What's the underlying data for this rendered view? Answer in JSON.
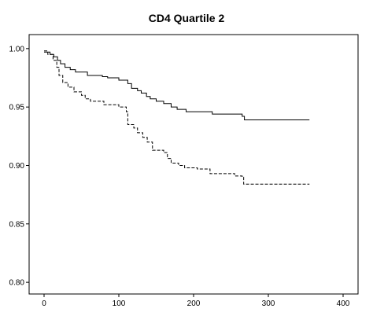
{
  "chart_data": {
    "type": "line",
    "title": "CD4 Quartile 2",
    "xlabel": "",
    "ylabel": "",
    "xlim": [
      -20,
      420
    ],
    "ylim": [
      0.79,
      1.012
    ],
    "x_ticks": [
      0,
      100,
      200,
      300,
      400
    ],
    "x_tick_labels": [
      "0",
      "100",
      "200",
      "300",
      "400"
    ],
    "y_ticks": [
      0.8,
      0.85,
      0.9,
      0.95,
      1.0
    ],
    "y_tick_labels": [
      "0.80",
      "0.85",
      "0.90",
      "0.95",
      "1.00"
    ],
    "grid": false,
    "step": true,
    "series": [
      {
        "line_style": "solid",
        "color": "#000000",
        "points": [
          [
            0,
            0.997
          ],
          [
            5,
            0.997
          ],
          [
            8,
            0.995
          ],
          [
            13,
            0.993
          ],
          [
            18,
            0.99
          ],
          [
            22,
            0.987
          ],
          [
            28,
            0.984
          ],
          [
            35,
            0.982
          ],
          [
            42,
            0.98
          ],
          [
            58,
            0.977
          ],
          [
            78,
            0.976
          ],
          [
            85,
            0.975
          ],
          [
            100,
            0.973
          ],
          [
            112,
            0.97
          ],
          [
            117,
            0.966
          ],
          [
            125,
            0.964
          ],
          [
            130,
            0.962
          ],
          [
            137,
            0.959
          ],
          [
            142,
            0.957
          ],
          [
            150,
            0.955
          ],
          [
            160,
            0.953
          ],
          [
            170,
            0.95
          ],
          [
            178,
            0.948
          ],
          [
            190,
            0.946
          ],
          [
            225,
            0.944
          ],
          [
            265,
            0.942
          ],
          [
            268,
            0.939
          ],
          [
            355,
            0.939
          ]
        ]
      },
      {
        "line_style": "dashed",
        "color": "#000000",
        "points": [
          [
            0,
            0.998
          ],
          [
            2,
            0.998
          ],
          [
            5,
            0.995
          ],
          [
            12,
            0.99
          ],
          [
            17,
            0.984
          ],
          [
            20,
            0.977
          ],
          [
            25,
            0.971
          ],
          [
            32,
            0.967
          ],
          [
            40,
            0.963
          ],
          [
            50,
            0.96
          ],
          [
            55,
            0.957
          ],
          [
            62,
            0.955
          ],
          [
            80,
            0.952
          ],
          [
            100,
            0.95
          ],
          [
            110,
            0.946
          ],
          [
            112,
            0.935
          ],
          [
            120,
            0.932
          ],
          [
            125,
            0.928
          ],
          [
            132,
            0.924
          ],
          [
            138,
            0.92
          ],
          [
            145,
            0.913
          ],
          [
            160,
            0.911
          ],
          [
            165,
            0.906
          ],
          [
            170,
            0.902
          ],
          [
            180,
            0.9
          ],
          [
            188,
            0.898
          ],
          [
            205,
            0.897
          ],
          [
            222,
            0.893
          ],
          [
            255,
            0.891
          ],
          [
            265,
            0.89
          ],
          [
            267,
            0.884
          ],
          [
            355,
            0.884
          ]
        ]
      }
    ]
  }
}
